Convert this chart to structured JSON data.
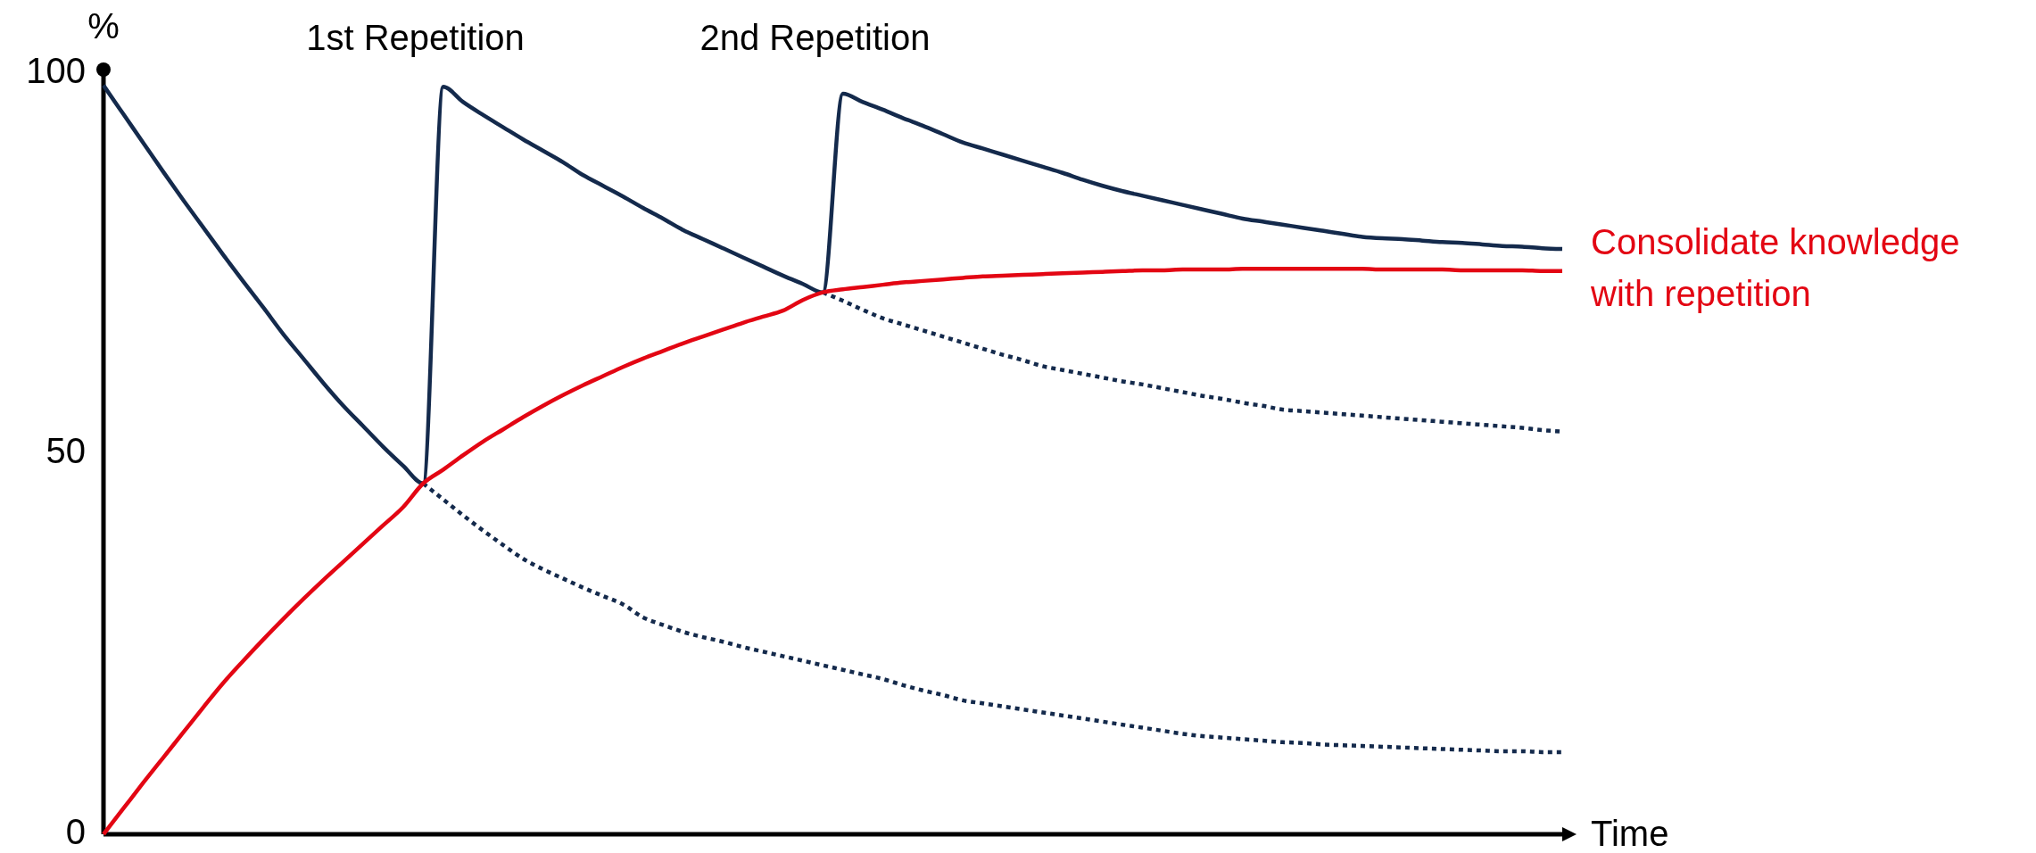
{
  "chart_data": {
    "type": "line",
    "ylabel": "%",
    "xlabel": "Time",
    "categories": [
      null,
      null,
      null,
      null,
      null,
      null,
      null,
      null,
      null,
      null,
      null,
      null,
      null,
      null,
      null,
      null,
      null,
      null,
      null,
      null,
      null,
      null,
      null,
      null,
      null,
      null,
      null,
      null,
      null,
      null,
      null,
      null,
      null,
      null,
      null,
      null,
      null,
      null,
      null,
      null,
      null,
      null,
      null,
      null,
      null,
      null,
      null,
      null,
      null,
      null,
      null,
      null,
      null,
      null,
      null,
      null,
      null,
      null,
      null,
      null,
      null,
      null,
      null,
      null,
      null,
      null,
      null,
      null,
      null,
      null,
      null,
      null,
      null,
      null
    ],
    "ylim": [
      0,
      100
    ],
    "yticks": [
      0,
      50,
      100
    ],
    "annotations": [
      "1st Repetition",
      "2nd Repetition"
    ],
    "series": [
      {
        "color": "#142a4c",
        "line_style": "solid",
        "values": [
          98.4,
          94.6,
          90.8,
          87.0,
          83.3,
          79.7,
          76.1,
          72.6,
          69.2,
          65.7,
          62.5,
          59.3,
          56.3,
          53.6,
          50.9,
          48.4,
          46.1,
          98.2,
          96.2,
          94.5,
          92.9,
          91.3,
          89.8,
          88.3,
          86.6,
          85.2,
          83.8,
          82.3,
          80.9,
          79.4,
          78.2,
          77.0,
          75.8,
          74.6,
          73.4,
          72.3,
          71.2,
          97.3,
          96.2,
          95.2,
          94.1,
          93.1,
          92.0,
          90.9,
          90.1,
          89.3,
          88.5,
          87.7,
          86.9,
          86.0,
          85.2,
          84.5,
          83.9,
          83.3,
          82.7,
          82.1,
          81.5,
          80.9,
          80.5,
          80.1,
          79.7,
          79.3,
          78.9,
          78.5,
          78.3,
          78.2,
          78.0,
          77.8,
          77.7,
          77.5,
          77.3,
          77.2,
          77.0,
          76.9
        ]
      },
      {
        "color": "#142a4c",
        "line_style": "dotted",
        "values": [
          null,
          null,
          null,
          null,
          null,
          null,
          null,
          null,
          null,
          null,
          null,
          null,
          null,
          null,
          null,
          null,
          46.1,
          44.0,
          41.9,
          39.9,
          38.0,
          36.2,
          34.8,
          33.6,
          32.4,
          31.3,
          30.2,
          28.5,
          27.5,
          26.6,
          25.9,
          25.3,
          24.6,
          24.0,
          23.4,
          22.8,
          22.2,
          21.6,
          21.0,
          20.4,
          19.6,
          18.9,
          18.3,
          17.6,
          17.2,
          16.8,
          16.4,
          16.0,
          15.6,
          15.2,
          14.8,
          14.4,
          14.0,
          13.6,
          13.2,
          12.9,
          12.7,
          12.5,
          12.3,
          12.1,
          12.0,
          11.8,
          11.7,
          11.6,
          11.5,
          11.4,
          11.3,
          11.2,
          11.1,
          11.0,
          10.9,
          10.9,
          10.8,
          10.8
        ]
      },
      {
        "color": "#142a4c",
        "line_style": "dotted",
        "values": [
          null,
          null,
          null,
          null,
          null,
          null,
          null,
          null,
          null,
          null,
          null,
          null,
          null,
          null,
          null,
          null,
          null,
          null,
          null,
          null,
          null,
          null,
          null,
          null,
          null,
          null,
          null,
          null,
          null,
          null,
          null,
          null,
          null,
          null,
          null,
          null,
          71.2,
          70.1,
          68.9,
          67.8,
          67.0,
          66.2,
          65.4,
          64.6,
          63.8,
          63.0,
          62.3,
          61.5,
          61.0,
          60.5,
          60.0,
          59.5,
          59.1,
          58.6,
          58.1,
          57.6,
          57.2,
          56.7,
          56.3,
          55.8,
          55.6,
          55.4,
          55.2,
          55.0,
          54.8,
          54.6,
          54.4,
          54.2,
          54.0,
          53.8,
          53.6,
          53.4,
          53.1,
          52.9
        ]
      },
      {
        "name": "Consolidate knowledge with repetition",
        "color": "#e30613",
        "line_style": "solid",
        "values": [
          0,
          3.4,
          6.8,
          10.1,
          13.4,
          16.7,
          19.9,
          22.8,
          25.6,
          28.3,
          30.9,
          33.4,
          35.8,
          38.2,
          40.6,
          43.0,
          46.1,
          47.9,
          49.8,
          51.6,
          53.2,
          54.8,
          56.3,
          57.7,
          59.0,
          60.2,
          61.4,
          62.5,
          63.5,
          64.5,
          65.4,
          66.3,
          67.2,
          68.0,
          68.8,
          70.2,
          71.2,
          71.6,
          71.9,
          72.2,
          72.5,
          72.7,
          72.9,
          73.1,
          73.3,
          73.4,
          73.5,
          73.6,
          73.7,
          73.8,
          73.9,
          74.0,
          74.1,
          74.1,
          74.2,
          74.2,
          74.2,
          74.3,
          74.3,
          74.3,
          74.3,
          74.3,
          74.3,
          74.3,
          74.2,
          74.2,
          74.2,
          74.2,
          74.1,
          74.1,
          74.1,
          74.1,
          74.0,
          74.0
        ]
      }
    ]
  }
}
